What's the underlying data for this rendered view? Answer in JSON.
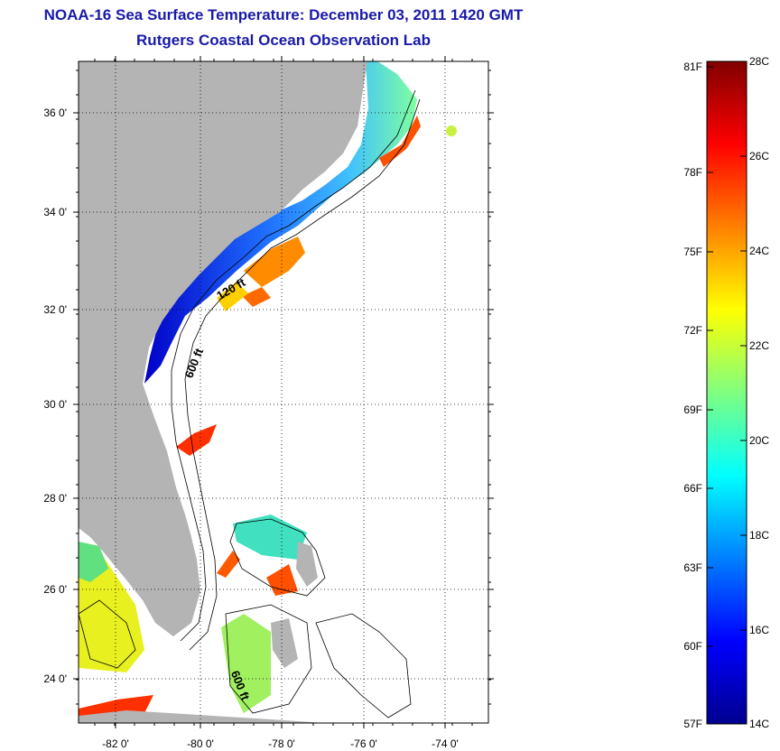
{
  "title": {
    "line1": "NOAA-16 Sea Surface Temperature:  December 03, 2011 1420 GMT",
    "line2": "Rutgers Coastal Ocean Observation Lab"
  },
  "map": {
    "lat_ticks": [
      "24 0'",
      "26 0'",
      "28 0'",
      "30 0'",
      "32 0'",
      "34 0'",
      "36 0'"
    ],
    "lon_ticks": [
      "-82 0'",
      "-80 0'",
      "-78 0'",
      "-76 0'",
      "-74 0'"
    ],
    "isobath_labels": [
      "120 ft",
      "600 ft",
      "600 ft"
    ],
    "colors": {
      "land": "#b4b4b4",
      "ocean_nodata": "#ffffff",
      "grid": "#000000"
    }
  },
  "colorbar": {
    "celsius": [
      "28C",
      "26C",
      "24C",
      "22C",
      "20C",
      "18C",
      "16C",
      "14C"
    ],
    "fahrenheit": [
      "81F",
      "78F",
      "75F",
      "72F",
      "69F",
      "66F",
      "63F",
      "60F",
      "57F"
    ],
    "colors": [
      "#00008f",
      "#0000ff",
      "#0080ff",
      "#00ffff",
      "#80ff80",
      "#ffff00",
      "#ff8000",
      "#ff0000",
      "#800000"
    ]
  }
}
